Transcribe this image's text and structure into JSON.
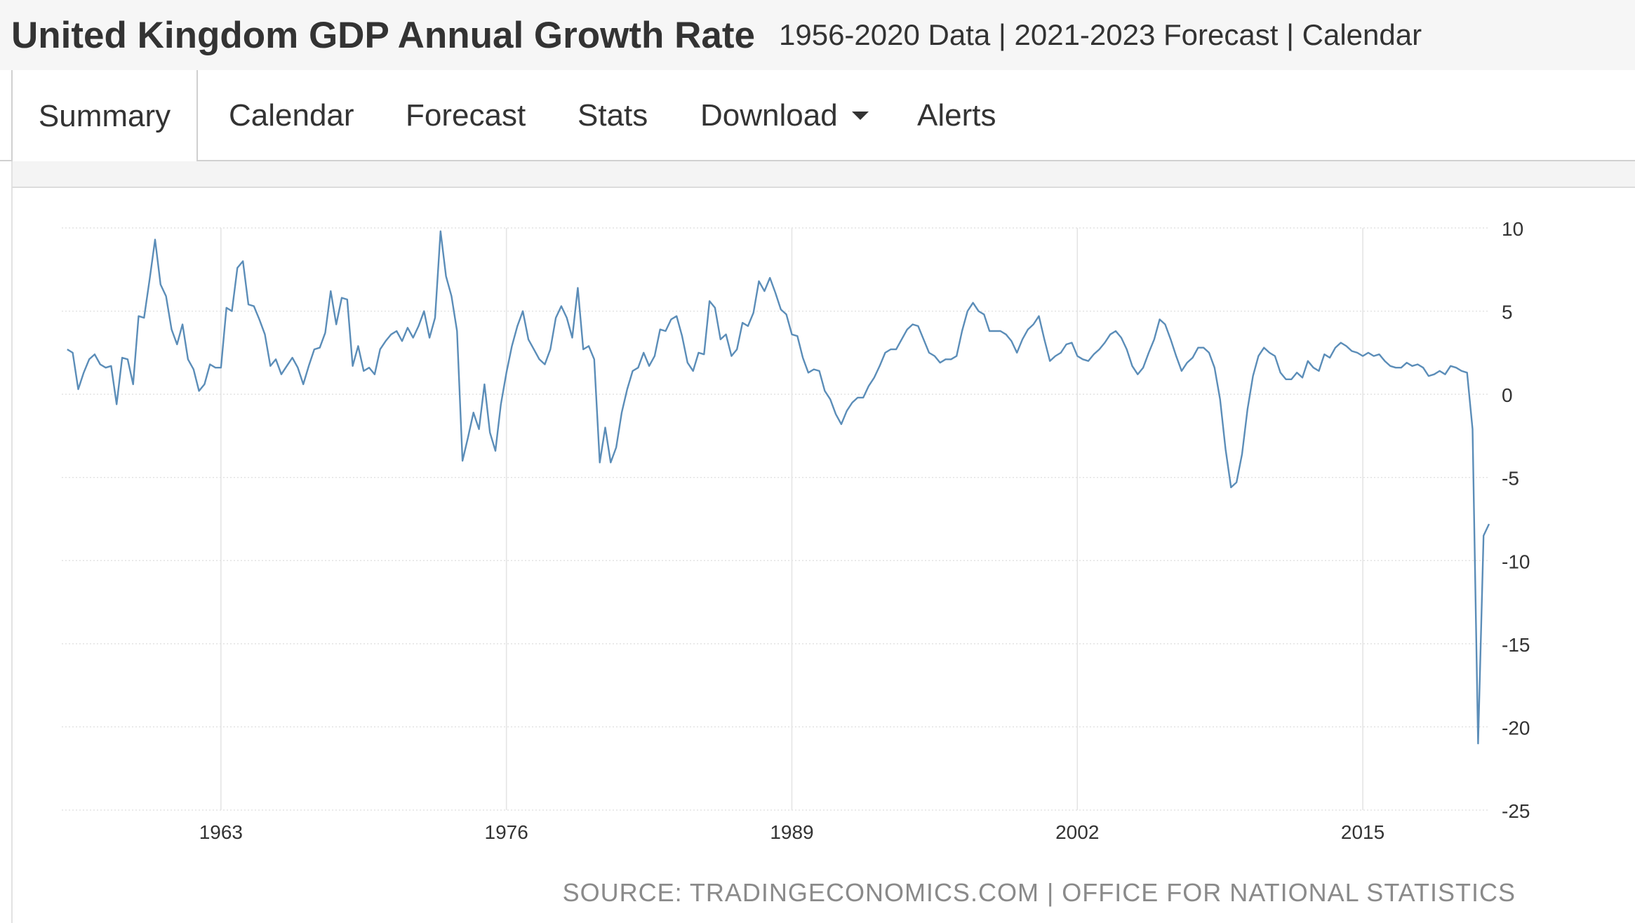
{
  "header": {
    "title": "United Kingdom GDP Annual Growth Rate",
    "subtitle": "1956-2020 Data | 2021-2023 Forecast | Calendar"
  },
  "tabs": [
    {
      "label": "Summary",
      "active": true
    },
    {
      "label": "Calendar",
      "active": false
    },
    {
      "label": "Forecast",
      "active": false
    },
    {
      "label": "Stats",
      "active": false
    },
    {
      "label": "Download",
      "active": false,
      "has_dropdown": true
    },
    {
      "label": "Alerts",
      "active": false
    }
  ],
  "source_text": "SOURCE: TRADINGECONOMICS.COM | OFFICE FOR NATIONAL STATISTICS",
  "colors": {
    "line": "#5b8db8",
    "grid": "#e3e3e3",
    "text": "#333333",
    "source": "#8a8a8a"
  },
  "chart_data": {
    "type": "line",
    "title": "",
    "xlabel": "",
    "ylabel": "",
    "ylim": [
      -25,
      10
    ],
    "yticks": [
      10,
      5,
      0,
      -5,
      -10,
      -15,
      -20,
      -25
    ],
    "xticks": [
      "1963",
      "1976",
      "1989",
      "2002",
      "2015"
    ],
    "xlim": [
      1955.75,
      2020.75
    ],
    "grid": true,
    "y_axis_side": "right",
    "series": [
      {
        "x": [
          1956.0,
          1956.25,
          1956.5,
          1956.75,
          1957.0,
          1957.25,
          1957.5,
          1957.75,
          1958.0,
          1958.25,
          1958.5,
          1958.75,
          1959.0,
          1959.25,
          1959.5,
          1959.75,
          1960.0,
          1960.25,
          1960.5,
          1960.75,
          1961.0,
          1961.25,
          1961.5,
          1961.75,
          1962.0,
          1962.25,
          1962.5,
          1962.75,
          1963.0,
          1963.25,
          1963.5,
          1963.75,
          1964.0,
          1964.25,
          1964.5,
          1964.75,
          1965.0,
          1965.25,
          1965.5,
          1965.75,
          1966.0,
          1966.25,
          1966.5,
          1966.75,
          1967.0,
          1967.25,
          1967.5,
          1967.75,
          1968.0,
          1968.25,
          1968.5,
          1968.75,
          1969.0,
          1969.25,
          1969.5,
          1969.75,
          1970.0,
          1970.25,
          1970.5,
          1970.75,
          1971.0,
          1971.25,
          1971.5,
          1971.75,
          1972.0,
          1972.25,
          1972.5,
          1972.75,
          1973.0,
          1973.25,
          1973.5,
          1973.75,
          1974.0,
          1974.25,
          1974.5,
          1974.75,
          1975.0,
          1975.25,
          1975.5,
          1975.75,
          1976.0,
          1976.25,
          1976.5,
          1976.75,
          1977.0,
          1977.25,
          1977.5,
          1977.75,
          1978.0,
          1978.25,
          1978.5,
          1978.75,
          1979.0,
          1979.25,
          1979.5,
          1979.75,
          1980.0,
          1980.25,
          1980.5,
          1980.75,
          1981.0,
          1981.25,
          1981.5,
          1981.75,
          1982.0,
          1982.25,
          1982.5,
          1982.75,
          1983.0,
          1983.25,
          1983.5,
          1983.75,
          1984.0,
          1984.25,
          1984.5,
          1984.75,
          1985.0,
          1985.25,
          1985.5,
          1985.75,
          1986.0,
          1986.25,
          1986.5,
          1986.75,
          1987.0,
          1987.25,
          1987.5,
          1987.75,
          1988.0,
          1988.25,
          1988.5,
          1988.75,
          1989.0,
          1989.25,
          1989.5,
          1989.75,
          1990.0,
          1990.25,
          1990.5,
          1990.75,
          1991.0,
          1991.25,
          1991.5,
          1991.75,
          1992.0,
          1992.25,
          1992.5,
          1992.75,
          1993.0,
          1993.25,
          1993.5,
          1993.75,
          1994.0,
          1994.25,
          1994.5,
          1994.75,
          1995.0,
          1995.25,
          1995.5,
          1995.75,
          1996.0,
          1996.25,
          1996.5,
          1996.75,
          1997.0,
          1997.25,
          1997.5,
          1997.75,
          1998.0,
          1998.25,
          1998.5,
          1998.75,
          1999.0,
          1999.25,
          1999.5,
          1999.75,
          2000.0,
          2000.25,
          2000.5,
          2000.75,
          2001.0,
          2001.25,
          2001.5,
          2001.75,
          2002.0,
          2002.25,
          2002.5,
          2002.75,
          2003.0,
          2003.25,
          2003.5,
          2003.75,
          2004.0,
          2004.25,
          2004.5,
          2004.75,
          2005.0,
          2005.25,
          2005.5,
          2005.75,
          2006.0,
          2006.25,
          2006.5,
          2006.75,
          2007.0,
          2007.25,
          2007.5,
          2007.75,
          2008.0,
          2008.25,
          2008.5,
          2008.75,
          2009.0,
          2009.25,
          2009.5,
          2009.75,
          2010.0,
          2010.25,
          2010.5,
          2010.75,
          2011.0,
          2011.25,
          2011.5,
          2011.75,
          2012.0,
          2012.25,
          2012.5,
          2012.75,
          2013.0,
          2013.25,
          2013.5,
          2013.75,
          2014.0,
          2014.25,
          2014.5,
          2014.75,
          2015.0,
          2015.25,
          2015.5,
          2015.75,
          2016.0,
          2016.25,
          2016.5,
          2016.75,
          2017.0,
          2017.25,
          2017.5,
          2017.75,
          2018.0,
          2018.25,
          2018.5,
          2018.75,
          2019.0,
          2019.25,
          2019.5,
          2019.75,
          2020.0,
          2020.25,
          2020.5,
          2020.75
        ],
        "values": [
          2.7,
          2.5,
          0.3,
          1.3,
          2.1,
          2.4,
          1.8,
          1.6,
          1.7,
          -0.6,
          2.2,
          2.1,
          0.6,
          4.7,
          4.6,
          6.9,
          9.3,
          6.6,
          5.9,
          3.9,
          3.0,
          4.2,
          2.1,
          1.5,
          0.2,
          0.6,
          1.8,
          1.6,
          1.6,
          5.2,
          5.0,
          7.6,
          8.0,
          5.4,
          5.3,
          4.5,
          3.6,
          1.7,
          2.1,
          1.2,
          1.7,
          2.2,
          1.6,
          0.6,
          1.7,
          2.7,
          2.8,
          3.7,
          6.2,
          4.2,
          5.8,
          5.7,
          1.7,
          2.9,
          1.4,
          1.6,
          1.2,
          2.7,
          3.2,
          3.6,
          3.8,
          3.2,
          4.0,
          3.4,
          4.1,
          5.0,
          3.4,
          4.6,
          9.8,
          7.1,
          5.9,
          3.8,
          -4.0,
          -2.6,
          -1.1,
          -2.1,
          0.6,
          -2.3,
          -3.4,
          -0.6,
          1.3,
          2.9,
          4.1,
          5.0,
          3.3,
          2.7,
          2.1,
          1.8,
          2.7,
          4.6,
          5.3,
          4.6,
          3.4,
          6.4,
          2.7,
          2.9,
          2.1,
          -4.1,
          -2.0,
          -4.1,
          -3.2,
          -1.1,
          0.3,
          1.4,
          1.6,
          2.5,
          1.7,
          2.3,
          3.9,
          3.8,
          4.5,
          4.7,
          3.5,
          1.9,
          1.4,
          2.5,
          2.4,
          5.6,
          5.2,
          3.3,
          3.6,
          2.3,
          2.7,
          4.3,
          4.1,
          4.9,
          6.8,
          6.2,
          7.0,
          6.1,
          5.1,
          4.8,
          3.6,
          3.5,
          2.2,
          1.3,
          1.5,
          1.4,
          0.2,
          -0.3,
          -1.2,
          -1.8,
          -1.0,
          -0.5,
          -0.2,
          -0.2,
          0.5,
          1.0,
          1.7,
          2.5,
          2.7,
          2.7,
          3.3,
          3.9,
          4.2,
          4.1,
          3.3,
          2.5,
          2.3,
          1.9,
          2.1,
          2.1,
          2.3,
          3.8,
          5.0,
          5.5,
          5.0,
          4.8,
          3.8,
          3.8,
          3.8,
          3.6,
          3.2,
          2.5,
          3.3,
          3.9,
          4.2,
          4.7,
          3.3,
          2.0,
          2.3,
          2.5,
          3.0,
          3.1,
          2.3,
          2.1,
          2.0,
          2.4,
          2.7,
          3.1,
          3.6,
          3.8,
          3.4,
          2.7,
          1.7,
          1.2,
          1.6,
          2.5,
          3.3,
          4.5,
          4.2,
          3.3,
          2.3,
          1.4,
          1.9,
          2.2,
          2.8,
          2.8,
          2.5,
          1.6,
          -0.3,
          -3.3,
          -5.6,
          -5.3,
          -3.6,
          -0.9,
          1.1,
          2.3,
          2.8,
          2.5,
          2.3,
          1.3,
          0.9,
          0.9,
          1.3,
          1.0,
          2.0,
          1.6,
          1.4,
          2.4,
          2.2,
          2.8,
          3.1,
          2.9,
          2.6,
          2.5,
          2.3,
          2.5,
          2.3,
          2.4,
          2.0,
          1.7,
          1.6,
          1.6,
          1.9,
          1.7,
          1.8,
          1.6,
          1.1,
          1.2,
          1.4,
          1.2,
          1.7,
          1.6,
          1.4,
          1.3,
          -2.1,
          -21.0,
          -8.5,
          -7.8
        ]
      }
    ]
  }
}
